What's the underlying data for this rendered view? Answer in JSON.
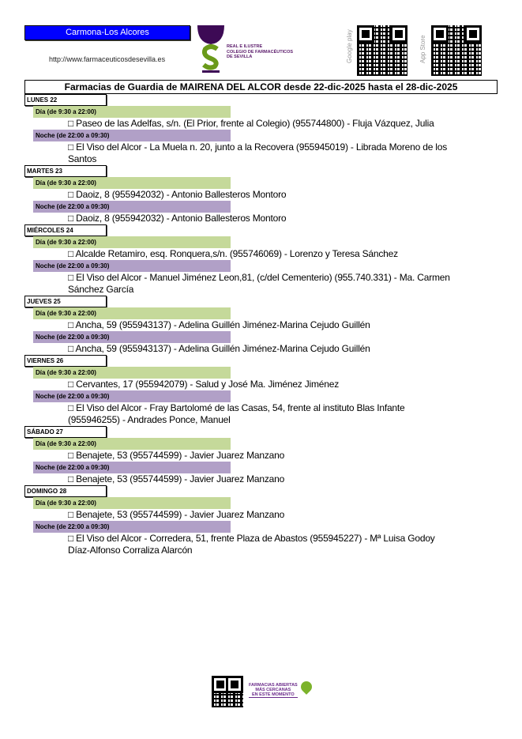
{
  "header": {
    "zone": "Carmona-Los Alcores",
    "url": "http://www.farmaceuticosdesevilla.es",
    "colegio": [
      "REAL E ILUSTRE",
      "COLEGIO DE FARMACÉUTICOS",
      "DE SEVILLA"
    ],
    "google_play": "Google play",
    "app_store": "App Store"
  },
  "title": "Farmacias de Guardia de MAIRENA DEL ALCOR desde 22-dic-2025 hasta el 28-dic-2025",
  "days": [
    {
      "label": "LUNES 22",
      "dia_label": "Día (de 9:30 a 22:00)",
      "dia": "□ Paseo de las Adelfas, s/n. (El Prior, frente al Colegio) (955744800) - Fluja Vázquez, Julia",
      "noche_label": "Noche (de 22:00 a 09:30)",
      "noche": "□ El Viso del Alcor - La Muela n. 20, junto a la Recovera (955945019) - Librada Moreno de los Santos"
    },
    {
      "label": "MARTES 23",
      "dia_label": "Día (de 9:30 a 22:00)",
      "dia": "□ Daoiz, 8 (955942032) - Antonio Ballesteros Montoro",
      "noche_label": "Noche (de 22:00 a 09:30)",
      "noche": "□ Daoiz, 8 (955942032) - Antonio Ballesteros Montoro"
    },
    {
      "label": "MIÉRCOLES 24",
      "dia_label": "Día (de 9:30 a 22:00)",
      "dia": "□ Alcalde Retamiro, esq. Ronquera,s/n. (955746069) - Lorenzo y Teresa Sánchez",
      "noche_label": "Noche (de 22:00 a 09:30)",
      "noche": "□ El Viso del Alcor - Manuel Jiménez Leon,81, (c/del Cementerio) (955.740.331) - Ma. Carmen Sánchez García"
    },
    {
      "label": "JUEVES 25",
      "dia_label": "Día (de 9:30 a 22:00)",
      "dia": "□ Ancha, 59 (955943137) - Adelina Guillén Jiménez-Marina Cejudo Guillén",
      "noche_label": "Noche (de 22:00 a 09:30)",
      "noche": "□ Ancha, 59 (955943137) - Adelina Guillén Jiménez-Marina Cejudo Guillén"
    },
    {
      "label": "VIERNES 26",
      "dia_label": "Día (de 9:30 a 22:00)",
      "dia": "□ Cervantes,  17 (955942079) - Salud y José Ma. Jiménez Jiménez",
      "noche_label": "Noche (de 22:00 a 09:30)",
      "noche": "□ El Viso del Alcor - Fray Bartolomé de las Casas, 54, frente al instituto Blas Infante (955946255) - Andrades Ponce, Manuel"
    },
    {
      "label": "SÁBADO 27",
      "dia_label": "Día (de 9:30 a 22:00)",
      "dia": "□ Benajete, 53 (955744599) - Javier Juarez Manzano",
      "noche_label": "Noche (de 22:00 a 09:30)",
      "noche": "□ Benajete, 53 (955744599) - Javier Juarez Manzano"
    },
    {
      "label": "DOMINGO 28",
      "dia_label": "Día (de 9:30 a 22:00)",
      "dia": "□ Benajete, 53 (955744599) - Javier Juarez Manzano",
      "noche_label": "Noche (de 22:00 a 09:30)",
      "noche": "□ El Viso del Alcor - Corredera, 51, frente Plaza de Abastos (955945227) - Mª Luisa Godoy Díaz-Alfonso Corraliza Alarcón"
    }
  ],
  "footer": {
    "text": [
      "FARMACIAS ABIERTAS",
      "MÁS CERCANAS",
      "EN ESTE MOMENTO"
    ]
  },
  "colors": {
    "zone": "#0000ff",
    "dia": "#c5d99a",
    "noche": "#b1a0c7",
    "logo_purple": "#3d0a55",
    "logo_green": "#6a9a1a"
  }
}
